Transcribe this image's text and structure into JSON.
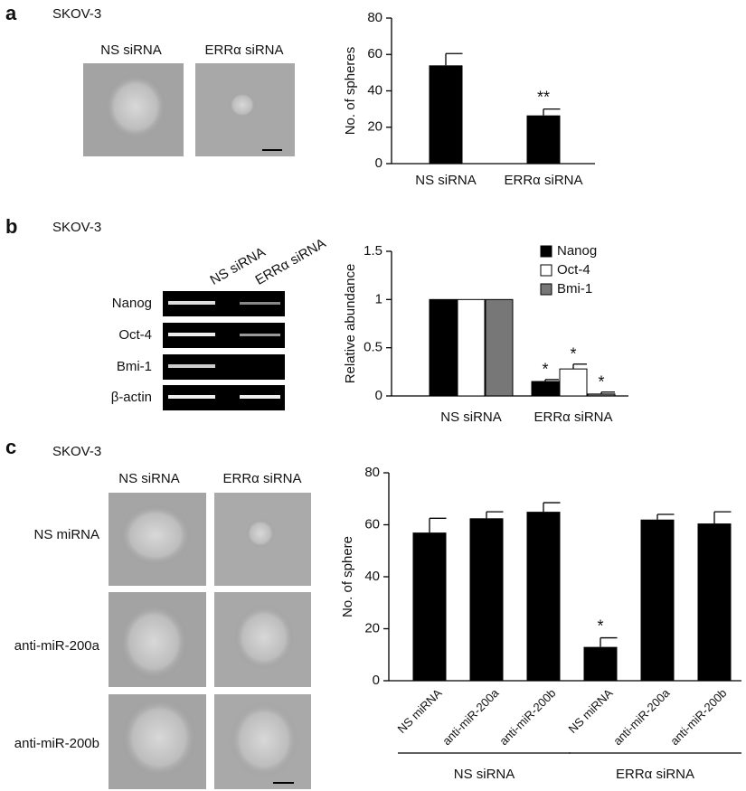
{
  "panels": [
    {
      "letter": "a",
      "cell_line": "SKOV-3",
      "image_labels": [
        "NS siRNA",
        "ERRα siRNA"
      ]
    },
    {
      "letter": "b",
      "cell_line": "SKOV-3",
      "gel_columns": [
        "NS siRNA",
        "ERRα siRNA"
      ],
      "gel_rows": [
        "Nanog",
        "Oct-4",
        "Bmi-1",
        "β-actin"
      ]
    },
    {
      "letter": "c",
      "cell_line": "SKOV-3",
      "image_columns": [
        "NS siRNA",
        "ERRα siRNA"
      ],
      "image_rows": [
        "NS miRNA",
        "anti-miR-200a",
        "anti-miR-200b"
      ]
    }
  ],
  "chart_data": [
    {
      "type": "bar",
      "ylabel": "No. of spheres",
      "categories": [
        "NS siRNA",
        "ERRα siRNA"
      ],
      "values": [
        54,
        26.5
      ],
      "errors": [
        6.5,
        3.5
      ],
      "annotations": [
        null,
        "**"
      ],
      "color": "#000000",
      "ylim": [
        0,
        80
      ],
      "yticks": [
        0,
        20,
        40,
        60,
        80
      ]
    },
    {
      "type": "grouped_bar",
      "ylabel": "Relative abundance",
      "categories": [
        "NS siRNA",
        "ERRα siRNA"
      ],
      "series": [
        {
          "name": "Nanog",
          "color": "#000000",
          "values": [
            1,
            0.15
          ],
          "errors": [
            0,
            0.02
          ],
          "annotations": [
            null,
            "*"
          ]
        },
        {
          "name": "Oct-4",
          "color": "#ffffff",
          "values": [
            1,
            0.28
          ],
          "errors": [
            0,
            0.05
          ],
          "annotations": [
            null,
            "*"
          ]
        },
        {
          "name": "Bmi-1",
          "color": "#777777",
          "values": [
            1,
            0.02
          ],
          "errors": [
            0,
            0.02
          ],
          "annotations": [
            null,
            "*"
          ]
        }
      ],
      "ylim": [
        0,
        1.5
      ],
      "yticks": [
        0,
        0.5,
        1,
        1.5
      ],
      "legend": "top-right"
    },
    {
      "type": "bar",
      "ylabel": "No. of sphere",
      "categories": [
        "NS miRNA",
        "anti-miR-200a",
        "anti-miR-200b",
        "NS miRNA",
        "anti-miR-200a",
        "anti-miR-200b"
      ],
      "group_labels": [
        "NS siRNA",
        "ERRα siRNA"
      ],
      "values": [
        57,
        62.5,
        65,
        13,
        62,
        60.5
      ],
      "errors": [
        5.5,
        2.5,
        3.5,
        3.5,
        2,
        4.5
      ],
      "annotations": [
        null,
        null,
        null,
        "*",
        null,
        null
      ],
      "color": "#000000",
      "ylim": [
        0,
        80
      ],
      "yticks": [
        0,
        20,
        40,
        60,
        80
      ]
    }
  ]
}
